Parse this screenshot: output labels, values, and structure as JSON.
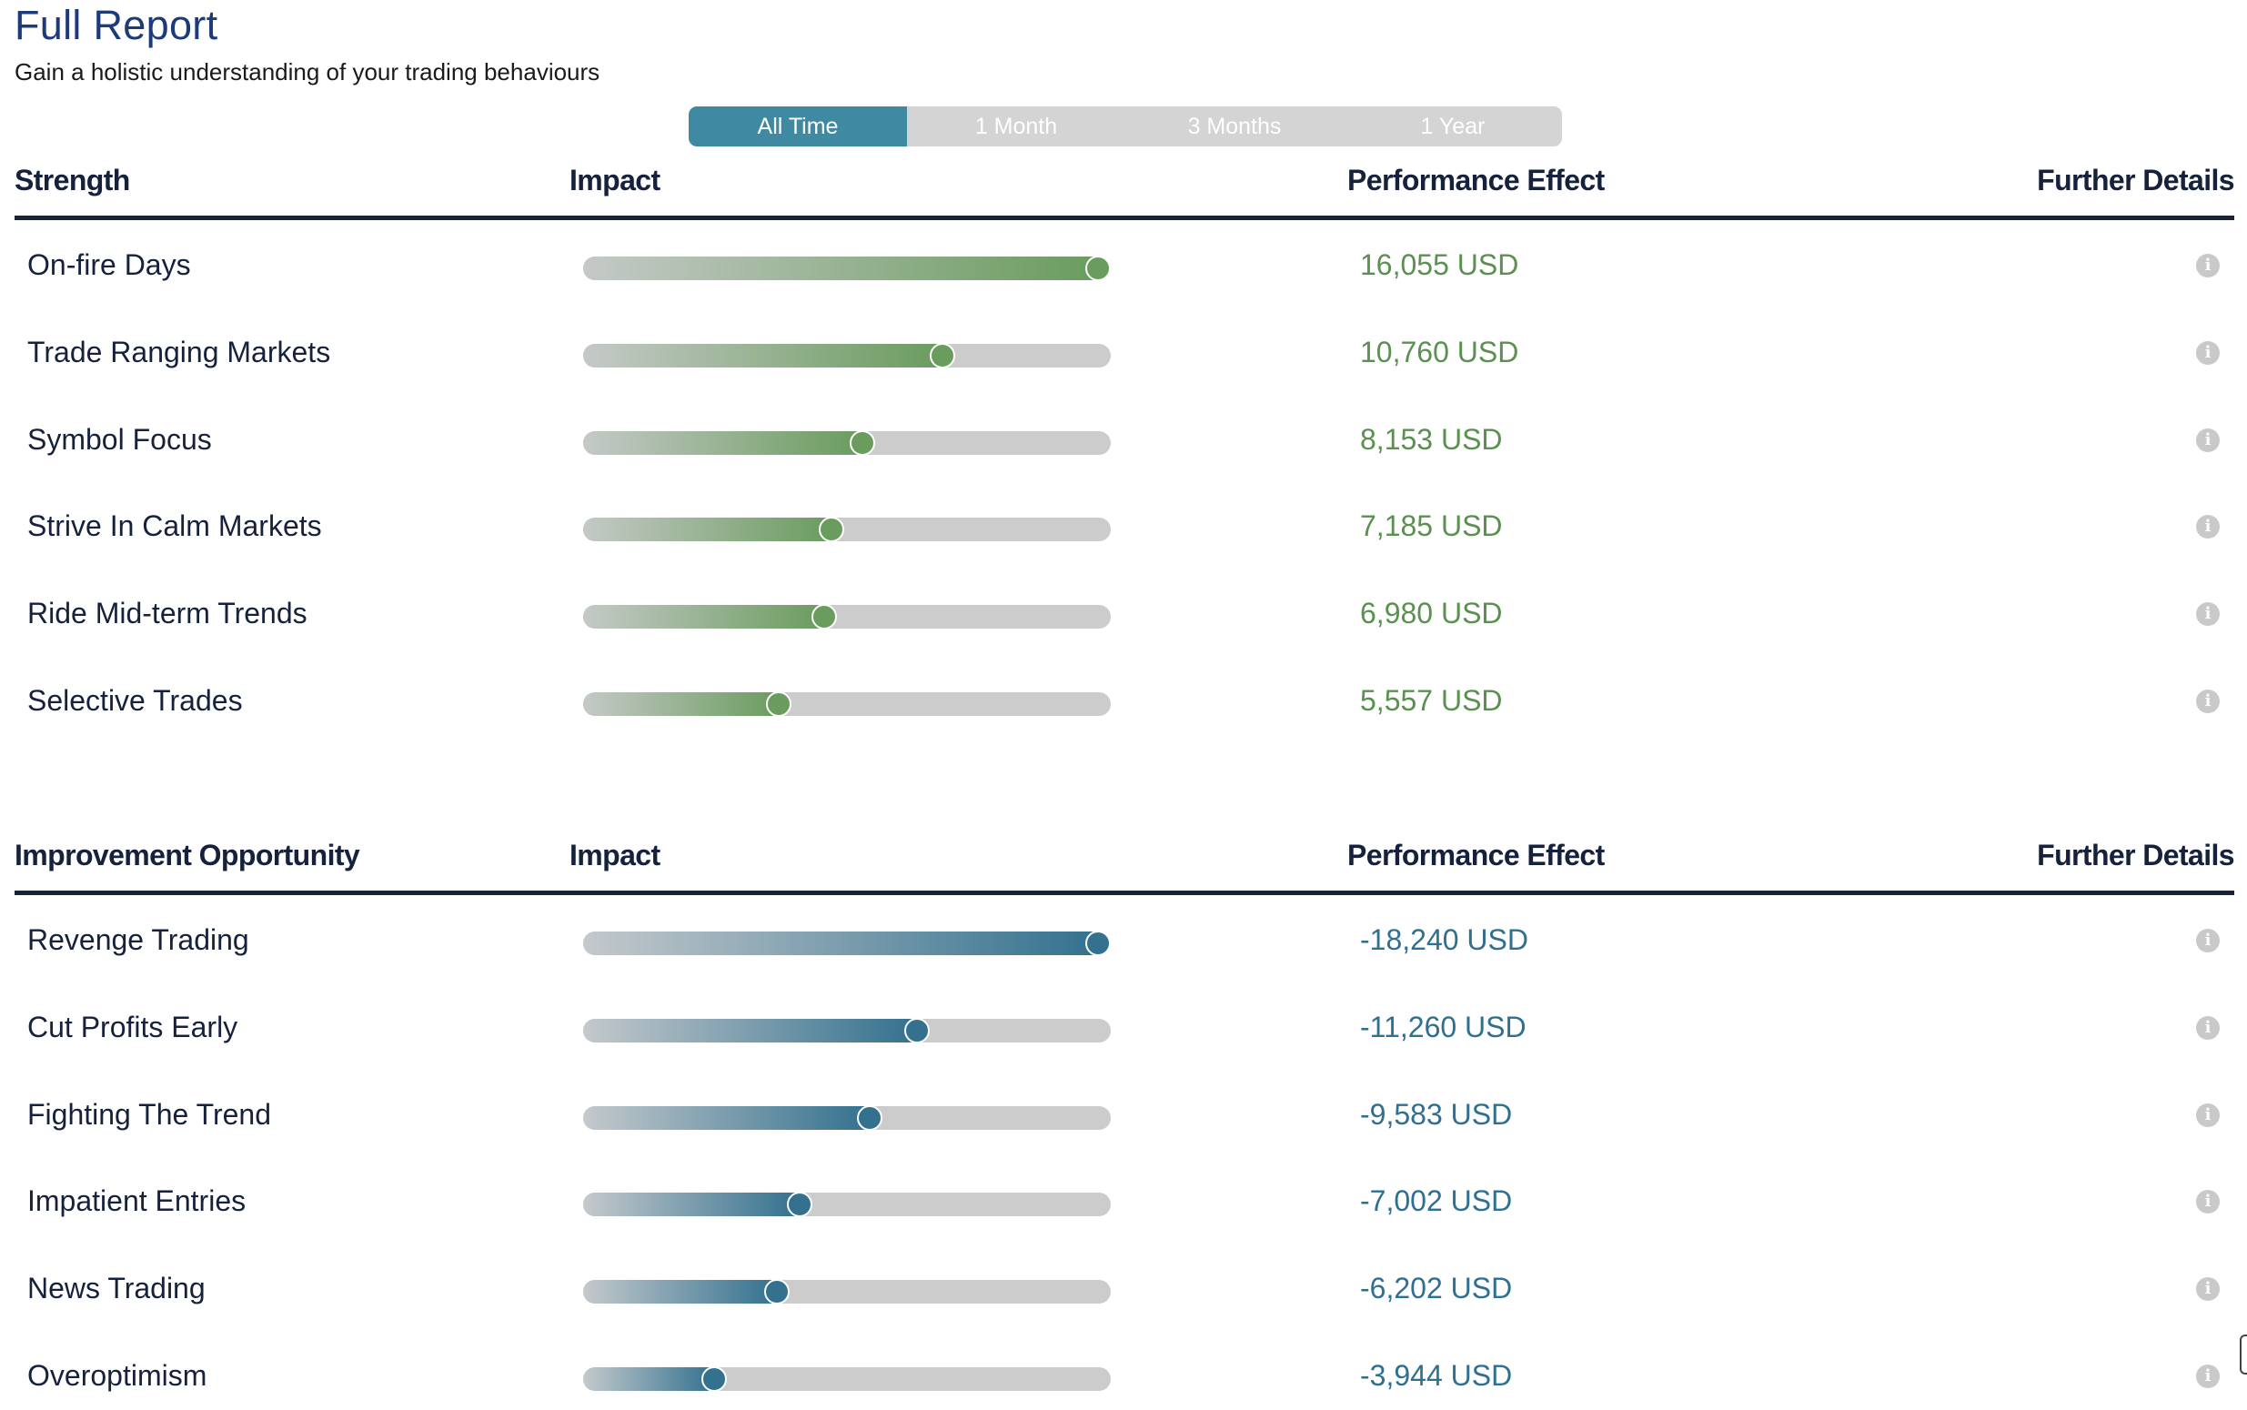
{
  "header": {
    "title": "Full Report",
    "subtitle": "Gain a holistic understanding of your trading behaviours"
  },
  "period_tabs": [
    {
      "label": "All Time",
      "active": true
    },
    {
      "label": "1 Month",
      "active": false
    },
    {
      "label": "3 Months",
      "active": false
    },
    {
      "label": "1 Year",
      "active": false
    }
  ],
  "strengths": {
    "columns": {
      "name": "Strength",
      "impact": "Impact",
      "performance": "Performance Effect",
      "details": "Further Details"
    },
    "rows": [
      {
        "label": "On-fire Days",
        "impact": 1.0,
        "performance": "16,055 USD"
      },
      {
        "label": "Trade Ranging Markets",
        "impact": 0.69,
        "performance": "10,760 USD"
      },
      {
        "label": "Symbol Focus",
        "impact": 0.53,
        "performance": "8,153 USD"
      },
      {
        "label": "Strive In Calm Markets",
        "impact": 0.47,
        "performance": "7,185 USD"
      },
      {
        "label": "Ride Mid-term Trends",
        "impact": 0.455,
        "performance": "6,980 USD"
      },
      {
        "label": "Selective Trades",
        "impact": 0.365,
        "performance": "5,557 USD"
      }
    ]
  },
  "improvements": {
    "columns": {
      "name": "Improvement Opportunity",
      "impact": "Impact",
      "performance": "Performance Effect",
      "details": "Further Details"
    },
    "rows": [
      {
        "label": "Revenge Trading",
        "impact": 1.0,
        "performance": "-18,240 USD"
      },
      {
        "label": "Cut Profits Early",
        "impact": 0.64,
        "performance": "-11,260 USD"
      },
      {
        "label": "Fighting The Trend",
        "impact": 0.545,
        "performance": "-9,583 USD"
      },
      {
        "label": "Impatient Entries",
        "impact": 0.405,
        "performance": "-7,002 USD"
      },
      {
        "label": "News Trading",
        "impact": 0.36,
        "performance": "-6,202 USD"
      },
      {
        "label": "Overoptimism",
        "impact": 0.235,
        "performance": "-3,944 USD"
      }
    ]
  },
  "colors": {
    "title": "#1d3a7a",
    "tab_active": "#3f8aa2",
    "tab_track": "#d4d4d4",
    "strength_accent": "#6a9c5e",
    "improvement_accent": "#33718f"
  },
  "icons": {
    "details": "info-icon"
  }
}
